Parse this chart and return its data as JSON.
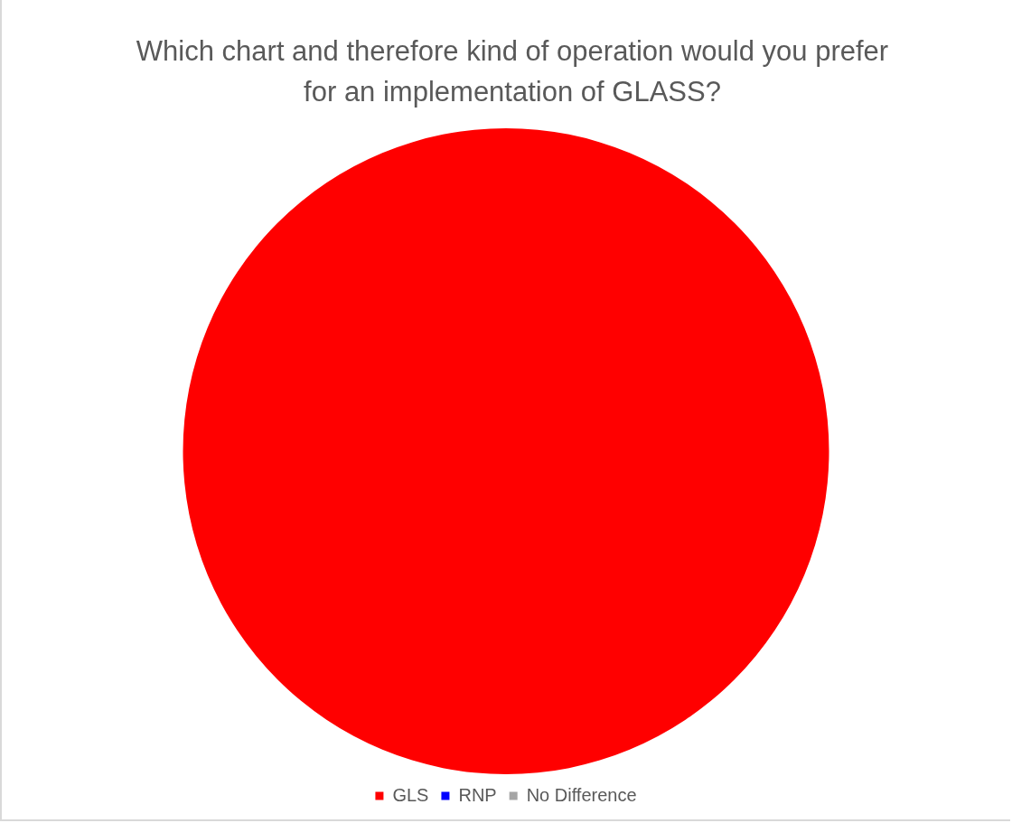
{
  "chart_data": {
    "type": "pie",
    "title": "Which chart and therefore kind of operation would you prefer for an implementation of GLASS?",
    "categories": [
      "GLS",
      "RNP",
      "No Difference"
    ],
    "values": [
      100,
      0,
      0
    ],
    "colors": [
      "#ff0000",
      "#0000ff",
      "#a5a5a5"
    ],
    "legend": "bottom"
  }
}
